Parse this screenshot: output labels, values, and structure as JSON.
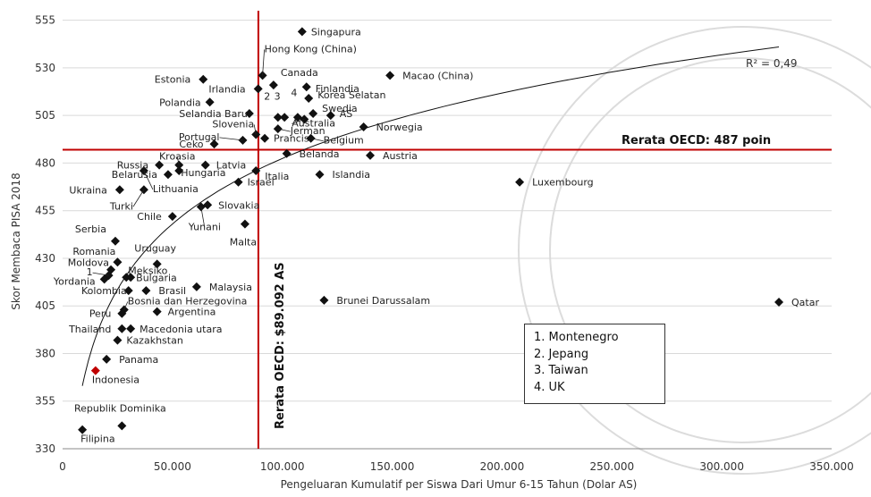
{
  "chart_data": {
    "type": "scatter",
    "xlabel": "Pengeluaran Kumulatif per Siswa Dari Umur 6-15 Tahun (Dolar AS)",
    "ylabel": "Skor Membaca PISA 2018",
    "xlim": [
      0,
      350000
    ],
    "ylim": [
      330,
      560
    ],
    "x_ticks": [
      0,
      50000,
      100000,
      150000,
      200000,
      250000,
      300000,
      350000
    ],
    "x_tick_labels": [
      "0",
      "50.000",
      "100.000",
      "150.000",
      "200.000",
      "250.000",
      "300.000",
      "350.000"
    ],
    "y_ticks": [
      330,
      355,
      380,
      405,
      430,
      455,
      480,
      505,
      530,
      555
    ],
    "y_tick_labels": [
      "330",
      "355",
      "380",
      "405",
      "430",
      "455",
      "480",
      "505",
      "530",
      "555"
    ],
    "grid": "horizontal",
    "r_squared_label": "R² = 0,49",
    "reference_lines": {
      "horizontal": {
        "value": 487,
        "label": "Rerata OECD: 487 poin",
        "color": "#c00000"
      },
      "vertical": {
        "value": 89092,
        "label": "Rerata OECD:  $89.092 AS",
        "color": "#c00000"
      }
    },
    "trendline": {
      "type": "logarithmic",
      "x_start": 9000,
      "x_end": 326000,
      "y_start": 363,
      "y_end": 541
    },
    "marker_color": "#111111",
    "highlight_color": "#c00000",
    "points": [
      {
        "label": "Singapura",
        "x": 109000,
        "y": 549
      },
      {
        "label": "Hong Kong (China)",
        "x": 91000,
        "y": 526
      },
      {
        "label": "Canada",
        "x": 96000,
        "y": 521
      },
      {
        "label": "Macao (China)",
        "x": 149000,
        "y": 526
      },
      {
        "label": "Estonia",
        "x": 64000,
        "y": 524
      },
      {
        "label": "Irlandia",
        "x": 89000,
        "y": 519
      },
      {
        "label": "Finlandia",
        "x": 111000,
        "y": 520
      },
      {
        "label": "Polandia",
        "x": 67000,
        "y": 512
      },
      {
        "label": "Korea Selatan",
        "x": 112000,
        "y": 514
      },
      {
        "label": "Swedia",
        "x": 114000,
        "y": 506
      },
      {
        "label": "AS",
        "x": 122000,
        "y": 505
      },
      {
        "label": "Selandia Baru",
        "x": 85000,
        "y": 506
      },
      {
        "label": "Slovenia",
        "x": 88000,
        "y": 495
      },
      {
        "label": "Australia",
        "x": 110000,
        "y": 503
      },
      {
        "label": "Jerman",
        "x": 98000,
        "y": 498
      },
      {
        "label": "Portugal",
        "x": 82000,
        "y": 492
      },
      {
        "label": "Prancis",
        "x": 92000,
        "y": 493
      },
      {
        "label": "Belgium",
        "x": 113000,
        "y": 493
      },
      {
        "label": "Norwegia",
        "x": 137000,
        "y": 499
      },
      {
        "label": "Ceko",
        "x": 69000,
        "y": 490
      },
      {
        "label": "Belanda",
        "x": 102000,
        "y": 485
      },
      {
        "label": "Austria",
        "x": 140000,
        "y": 484
      },
      {
        "label": "Kroasia",
        "x": 53000,
        "y": 479
      },
      {
        "label": "Russia",
        "x": 44000,
        "y": 479
      },
      {
        "label": "Latvia",
        "x": 65000,
        "y": 479
      },
      {
        "label": "Belarusia",
        "x": 48000,
        "y": 474
      },
      {
        "label": "Hungaria",
        "x": 53000,
        "y": 476
      },
      {
        "label": "Italia",
        "x": 88000,
        "y": 476
      },
      {
        "label": "Israel",
        "x": 80000,
        "y": 470
      },
      {
        "label": "Islandia",
        "x": 117000,
        "y": 474
      },
      {
        "label": "Luxembourg",
        "x": 208000,
        "y": 470
      },
      {
        "label": "Ukraina",
        "x": 26000,
        "y": 466
      },
      {
        "label": "Lithuania",
        "x": 37000,
        "y": 476
      },
      {
        "label": "Turki",
        "x": 37000,
        "y": 466
      },
      {
        "label": "Slovakia",
        "x": 66000,
        "y": 458
      },
      {
        "label": "Chile",
        "x": 50000,
        "y": 452
      },
      {
        "label": "Yunani",
        "x": 63000,
        "y": 457
      },
      {
        "label": "Malta",
        "x": 83000,
        "y": 448
      },
      {
        "label": "Serbia",
        "x": 24000,
        "y": 439
      },
      {
        "label": "Romania",
        "x": 25000,
        "y": 428
      },
      {
        "label": "Uruguay",
        "x": 43000,
        "y": 427
      },
      {
        "label": "Moldova",
        "x": 22000,
        "y": 424
      },
      {
        "label": "1",
        "x": 21000,
        "y": 421
      },
      {
        "label": "Yordania",
        "x": 19000,
        "y": 419
      },
      {
        "label": "Meksiko",
        "x": 29000,
        "y": 420
      },
      {
        "label": "Bulgaria",
        "x": 31000,
        "y": 420
      },
      {
        "label": "Kolombia",
        "x": 30000,
        "y": 413
      },
      {
        "label": "Brasil",
        "x": 38000,
        "y": 413
      },
      {
        "label": "Malaysia",
        "x": 61000,
        "y": 415
      },
      {
        "label": "Bosnia dan Herzegovina",
        "x": 28000,
        "y": 403
      },
      {
        "label": "Peru",
        "x": 27000,
        "y": 401
      },
      {
        "label": "Argentina",
        "x": 43000,
        "y": 402
      },
      {
        "label": "Thailand",
        "x": 27000,
        "y": 393
      },
      {
        "label": "Macedonia utara",
        "x": 31000,
        "y": 393
      },
      {
        "label": "Kazakhstan",
        "x": 25000,
        "y": 387
      },
      {
        "label": "Panama",
        "x": 20000,
        "y": 377
      },
      {
        "label": "Indonesia",
        "x": 15000,
        "y": 371,
        "highlight": true
      },
      {
        "label": "Brunei Darussalam",
        "x": 119000,
        "y": 408
      },
      {
        "label": "Qatar",
        "x": 326000,
        "y": 407
      },
      {
        "label": "Republik Dominika",
        "x": 27000,
        "y": 342
      },
      {
        "label": "Filipina",
        "x": 9000,
        "y": 340
      },
      {
        "label": "2",
        "x": 98000,
        "y": 504
      },
      {
        "label": "3",
        "x": 101000,
        "y": 504
      },
      {
        "label": "4",
        "x": 107000,
        "y": 504
      }
    ],
    "legend_entries": [
      "1. Montenegro",
      "2. Jepang",
      "3. Taiwan",
      "4. UK"
    ]
  }
}
